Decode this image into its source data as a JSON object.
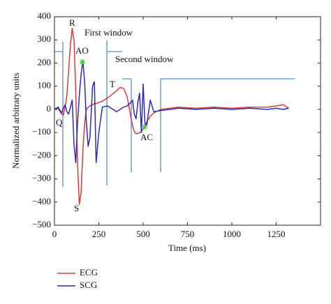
{
  "chart_data": {
    "type": "line",
    "x_label": "Time (ms)",
    "y_label": "Normalized arbitrary units",
    "xlim": [
      0,
      1500
    ],
    "ylim": [
      -500,
      400
    ],
    "xticks": [
      0,
      250,
      500,
      750,
      1000,
      1250
    ],
    "yticks": [
      {
        "value": -500,
        "label": "−500"
      },
      {
        "value": -400,
        "label": "−400"
      },
      {
        "value": -300,
        "label": "−300"
      },
      {
        "value": -200,
        "label": "−200"
      },
      {
        "value": -100,
        "label": "−100"
      },
      0,
      100,
      200,
      300,
      400
    ],
    "grid": false,
    "x": [
      0,
      20,
      40,
      50,
      60,
      70,
      80,
      90,
      100,
      110,
      120,
      130,
      140,
      150,
      160,
      170,
      180,
      190,
      200,
      215,
      225,
      235,
      250,
      270,
      300,
      350,
      370,
      390,
      410,
      430,
      440,
      450,
      460,
      470,
      480,
      490,
      500,
      510,
      520,
      540,
      560,
      600,
      700,
      800,
      900,
      1000,
      1100,
      1200,
      1250,
      1290,
      1320
    ],
    "series": [
      {
        "name": "ECG",
        "color": "#d63b3b",
        "values": [
          0,
          5,
          -20,
          -25,
          10,
          60,
          170,
          280,
          350,
          300,
          80,
          -230,
          -410,
          -360,
          -180,
          -60,
          0,
          10,
          15,
          20,
          25,
          25,
          30,
          35,
          50,
          80,
          95,
          90,
          55,
          -30,
          -70,
          -95,
          -105,
          -105,
          -100,
          -95,
          -85,
          -70,
          -55,
          -30,
          -15,
          0,
          10,
          5,
          10,
          5,
          10,
          10,
          15,
          20,
          5
        ]
      },
      {
        "name": "SCG",
        "color": "#2a2ab8",
        "values": [
          0,
          10,
          -15,
          5,
          20,
          -10,
          -20,
          10,
          40,
          -150,
          -230,
          -60,
          60,
          150,
          210,
          120,
          -60,
          -160,
          -120,
          100,
          120,
          -230,
          -100,
          10,
          15,
          -10,
          0,
          10,
          15,
          30,
          40,
          -20,
          -40,
          30,
          70,
          -100,
          110,
          -60,
          -70,
          40,
          -10,
          -5,
          5,
          0,
          5,
          0,
          5,
          0,
          5,
          0,
          5
        ]
      }
    ],
    "annotations": [
      "R",
      "First window",
      "AO",
      "Second window",
      "T",
      "AC",
      "Q",
      "S"
    ]
  }
}
